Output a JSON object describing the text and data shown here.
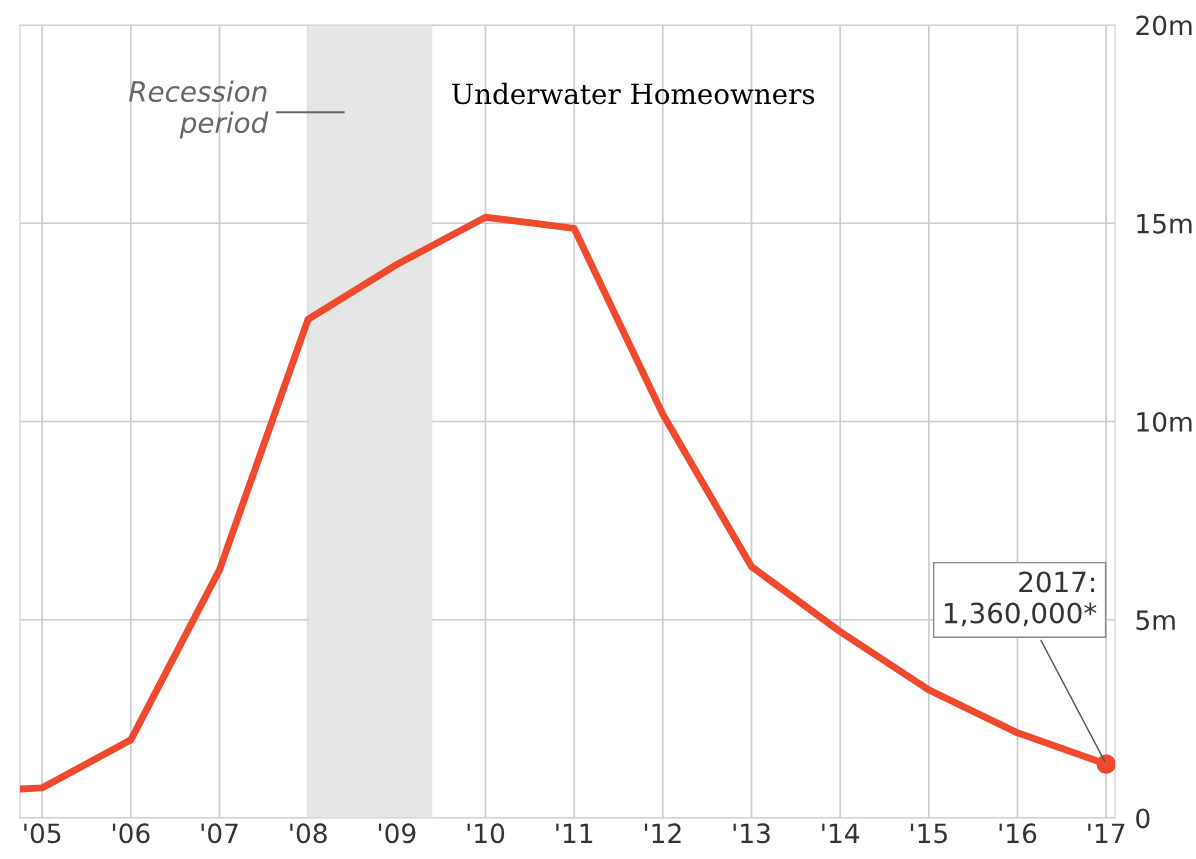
{
  "chart_data": {
    "type": "line",
    "title": "Underwater Homeowners",
    "x": [
      2004.75,
      2005,
      2006,
      2007,
      2008,
      2009,
      2010,
      2011,
      2012,
      2013,
      2014,
      2015,
      2016,
      2017
    ],
    "series": [
      {
        "color": "#f04a2e",
        "values": [
          0.73,
          0.76,
          1.97,
          6.26,
          12.58,
          13.96,
          15.15,
          14.87,
          10.18,
          6.34,
          4.7,
          3.23,
          2.15,
          1.36
        ]
      }
    ],
    "xlim": [
      2004.75,
      2017.1
    ],
    "xticks": [
      {
        "value": 2005,
        "label": "'05"
      },
      {
        "value": 2006,
        "label": "'06"
      },
      {
        "value": 2007,
        "label": "'07"
      },
      {
        "value": 2008,
        "label": "'08"
      },
      {
        "value": 2009,
        "label": "'09"
      },
      {
        "value": 2010,
        "label": "'10"
      },
      {
        "value": 2011,
        "label": "'11"
      },
      {
        "value": 2012,
        "label": "'12"
      },
      {
        "value": 2013,
        "label": "'13"
      },
      {
        "value": 2014,
        "label": "'14"
      },
      {
        "value": 2015,
        "label": "'15"
      },
      {
        "value": 2016,
        "label": "'16"
      },
      {
        "value": 2017,
        "label": "'17"
      }
    ],
    "ylim": [
      0,
      20
    ],
    "yticks": [
      0,
      {
        "value": 5,
        "label": "5m"
      },
      {
        "value": 10,
        "label": "10m"
      },
      {
        "value": 15,
        "label": "15m"
      },
      {
        "value": 20,
        "label": "20m"
      }
    ],
    "bands": [
      {
        "axis": "x",
        "from": 2008,
        "to": 2009.4,
        "label": "Recession\nperiod",
        "color": "#e6e6e6"
      }
    ],
    "annotations": [
      {
        "text": "2017:\n1,360,000*",
        "x": 2017,
        "y": 1.36
      }
    ],
    "grid": true,
    "marker": "none",
    "line_style": "solid",
    "legend": false
  }
}
